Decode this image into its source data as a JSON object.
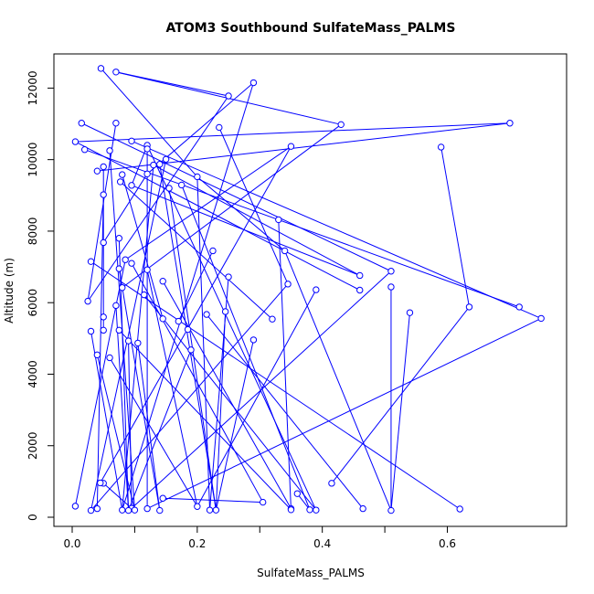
{
  "chart_data": {
    "type": "scatter",
    "title": "ATOM3 Southbound SulfateMass_PALMS",
    "xlabel": "SulfateMass_PALMS",
    "ylabel": "Altitude (m)",
    "xlim": [
      0.0,
      0.76
    ],
    "ylim": [
      0,
      12700
    ],
    "x_ticks": [
      0.0,
      0.1,
      0.2,
      0.3,
      0.4,
      0.5,
      0.6
    ],
    "x_tick_labels": [
      "0.0",
      "0.2",
      "0.4",
      "0.6"
    ],
    "x_tick_labeled": [
      0.0,
      0.2,
      0.4,
      0.6
    ],
    "y_ticks": [
      0,
      2000,
      4000,
      6000,
      8000,
      10000,
      12000
    ],
    "y_tick_labels": [
      "0",
      "2000",
      "4000",
      "6000",
      "8000",
      "10000",
      "12000"
    ],
    "grid": false,
    "legend": "none",
    "series": [
      {
        "color": "#0000ff",
        "marker": "open-circle",
        "line": true,
        "points": [
          [
            0.046,
            12550
          ],
          [
            0.07,
            12450
          ],
          [
            0.29,
            12150
          ],
          [
            0.25,
            11780
          ],
          [
            0.7,
            11020
          ],
          [
            0.015,
            11020
          ],
          [
            0.07,
            11020
          ],
          [
            0.43,
            10980
          ],
          [
            0.235,
            10900
          ],
          [
            0.095,
            10520
          ],
          [
            0.005,
            10500
          ],
          [
            0.12,
            10400
          ],
          [
            0.35,
            10370
          ],
          [
            0.59,
            10350
          ],
          [
            0.12,
            10300
          ],
          [
            0.02,
            10280
          ],
          [
            0.06,
            10250
          ],
          [
            0.15,
            10010
          ],
          [
            0.14,
            9870
          ],
          [
            0.13,
            9850
          ],
          [
            0.05,
            9800
          ],
          [
            0.04,
            9680
          ],
          [
            0.08,
            9580
          ],
          [
            0.12,
            9600
          ],
          [
            0.2,
            9520
          ],
          [
            0.077,
            9380
          ],
          [
            0.095,
            9280
          ],
          [
            0.175,
            9290
          ],
          [
            0.155,
            9200
          ],
          [
            0.05,
            9020
          ],
          [
            0.33,
            8320
          ],
          [
            0.075,
            7800
          ],
          [
            0.05,
            7680
          ],
          [
            0.225,
            7450
          ],
          [
            0.34,
            7450
          ],
          [
            0.085,
            7200
          ],
          [
            0.03,
            7150
          ],
          [
            0.095,
            7100
          ],
          [
            0.075,
            6950
          ],
          [
            0.12,
            6920
          ],
          [
            0.51,
            6880
          ],
          [
            0.46,
            6760
          ],
          [
            0.25,
            6720
          ],
          [
            0.145,
            6600
          ],
          [
            0.345,
            6520
          ],
          [
            0.51,
            6440
          ],
          [
            0.08,
            6420
          ],
          [
            0.39,
            6360
          ],
          [
            0.46,
            6350
          ],
          [
            0.115,
            6220
          ],
          [
            0.025,
            6040
          ],
          [
            0.07,
            5920
          ],
          [
            0.715,
            5880
          ],
          [
            0.635,
            5880
          ],
          [
            0.245,
            5750
          ],
          [
            0.54,
            5720
          ],
          [
            0.215,
            5670
          ],
          [
            0.75,
            5560
          ],
          [
            0.05,
            5600
          ],
          [
            0.145,
            5550
          ],
          [
            0.32,
            5540
          ],
          [
            0.17,
            5480
          ],
          [
            0.03,
            5200
          ],
          [
            0.05,
            5230
          ],
          [
            0.075,
            5230
          ],
          [
            0.185,
            5250
          ],
          [
            0.29,
            4960
          ],
          [
            0.09,
            4930
          ],
          [
            0.105,
            4870
          ],
          [
            0.19,
            4680
          ],
          [
            0.04,
            4540
          ],
          [
            0.06,
            4460
          ],
          [
            0.05,
            950
          ],
          [
            0.415,
            950
          ],
          [
            0.045,
            960
          ],
          [
            0.36,
            660
          ],
          [
            0.145,
            530
          ],
          [
            0.005,
            310
          ],
          [
            0.2,
            300
          ],
          [
            0.305,
            420
          ],
          [
            0.465,
            240
          ],
          [
            0.35,
            240
          ],
          [
            0.095,
            250
          ],
          [
            0.12,
            240
          ],
          [
            0.04,
            240
          ],
          [
            0.03,
            190
          ],
          [
            0.08,
            200
          ],
          [
            0.09,
            190
          ],
          [
            0.1,
            200
          ],
          [
            0.14,
            190
          ],
          [
            0.22,
            200
          ],
          [
            0.23,
            200
          ],
          [
            0.35,
            210
          ],
          [
            0.39,
            200
          ],
          [
            0.38,
            210
          ],
          [
            0.51,
            190
          ],
          [
            0.62,
            230
          ]
        ],
        "segments": [
          [
            0,
            24
          ],
          [
            1,
            3
          ],
          [
            1,
            7
          ],
          [
            2,
            23
          ],
          [
            2,
            86
          ],
          [
            4,
            21
          ],
          [
            4,
            10
          ],
          [
            5,
            40
          ],
          [
            6,
            50
          ],
          [
            7,
            46
          ],
          [
            8,
            44
          ],
          [
            9,
            57
          ],
          [
            10,
            48
          ],
          [
            11,
            93
          ],
          [
            12,
            35
          ],
          [
            13,
            53
          ],
          [
            14,
            83
          ],
          [
            15,
            52
          ],
          [
            16,
            88
          ],
          [
            17,
            85
          ],
          [
            18,
            91
          ],
          [
            19,
            86
          ],
          [
            20,
            63
          ],
          [
            22,
            59
          ],
          [
            23,
            32
          ],
          [
            24,
            90
          ],
          [
            25,
            60
          ],
          [
            26,
            41
          ],
          [
            27,
            94
          ],
          [
            28,
            91
          ],
          [
            29,
            84
          ],
          [
            30,
            92
          ],
          [
            31,
            87
          ],
          [
            33,
            61
          ],
          [
            34,
            95
          ],
          [
            36,
            96
          ],
          [
            37,
            79
          ],
          [
            38,
            89
          ],
          [
            39,
            78
          ],
          [
            40,
            82
          ],
          [
            42,
            90
          ],
          [
            43,
            81
          ],
          [
            44,
            85
          ],
          [
            45,
            95
          ],
          [
            47,
            78
          ],
          [
            49,
            93
          ],
          [
            51,
            87
          ],
          [
            53,
            73
          ],
          [
            54,
            91
          ],
          [
            55,
            95
          ],
          [
            56,
            80
          ],
          [
            57,
            83
          ],
          [
            58,
            97
          ],
          [
            62,
            86
          ],
          [
            64,
            92
          ],
          [
            66,
            91
          ],
          [
            67,
            82
          ],
          [
            68,
            89
          ],
          [
            69,
            87
          ],
          [
            70,
            88
          ],
          [
            71,
            78
          ],
          [
            72,
            82
          ],
          [
            75,
            94
          ],
          [
            76,
            79
          ],
          [
            77,
            35
          ],
          [
            3,
            50
          ],
          [
            12,
            74
          ],
          [
            11,
            26
          ],
          [
            41,
            19
          ],
          [
            34,
            24
          ]
        ]
      }
    ]
  }
}
